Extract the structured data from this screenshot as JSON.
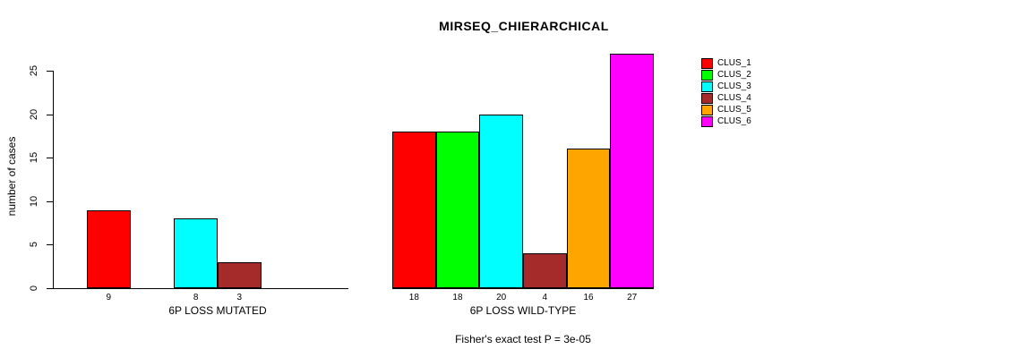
{
  "title": "MIRSEQ_CHIERARCHICAL",
  "footnote": "Fisher's exact test P = 3e-05",
  "chart_data": {
    "type": "bar",
    "title": "MIRSEQ_CHIERARCHICAL",
    "xlabel": "",
    "ylabel": "number of cases",
    "yticks": [
      0,
      5,
      10,
      15,
      20,
      25
    ],
    "ylim": [
      0,
      27
    ],
    "grid": false,
    "legend_position": "right",
    "groups": [
      "6P LOSS MUTATED",
      "6P LOSS WILD-TYPE"
    ],
    "series": [
      {
        "name": "CLUS_1",
        "color": "#FF0000",
        "values": [
          9,
          18
        ]
      },
      {
        "name": "CLUS_2",
        "color": "#00FF00",
        "values": [
          0,
          18
        ]
      },
      {
        "name": "CLUS_3",
        "color": "#00FFFF",
        "values": [
          8,
          20
        ]
      },
      {
        "name": "CLUS_4",
        "color": "#A52A2A",
        "values": [
          3,
          4
        ]
      },
      {
        "name": "CLUS_5",
        "color": "#FFA500",
        "values": [
          0,
          16
        ]
      },
      {
        "name": "CLUS_6",
        "color": "#FF00FF",
        "values": [
          0,
          27
        ]
      }
    ],
    "bar_value_labels_shown": [
      [
        "9",
        "8",
        "3"
      ],
      [
        "18",
        "18",
        "20",
        "4",
        "16",
        "27"
      ]
    ],
    "annotation": "Fisher's exact test P = 3e-05"
  }
}
